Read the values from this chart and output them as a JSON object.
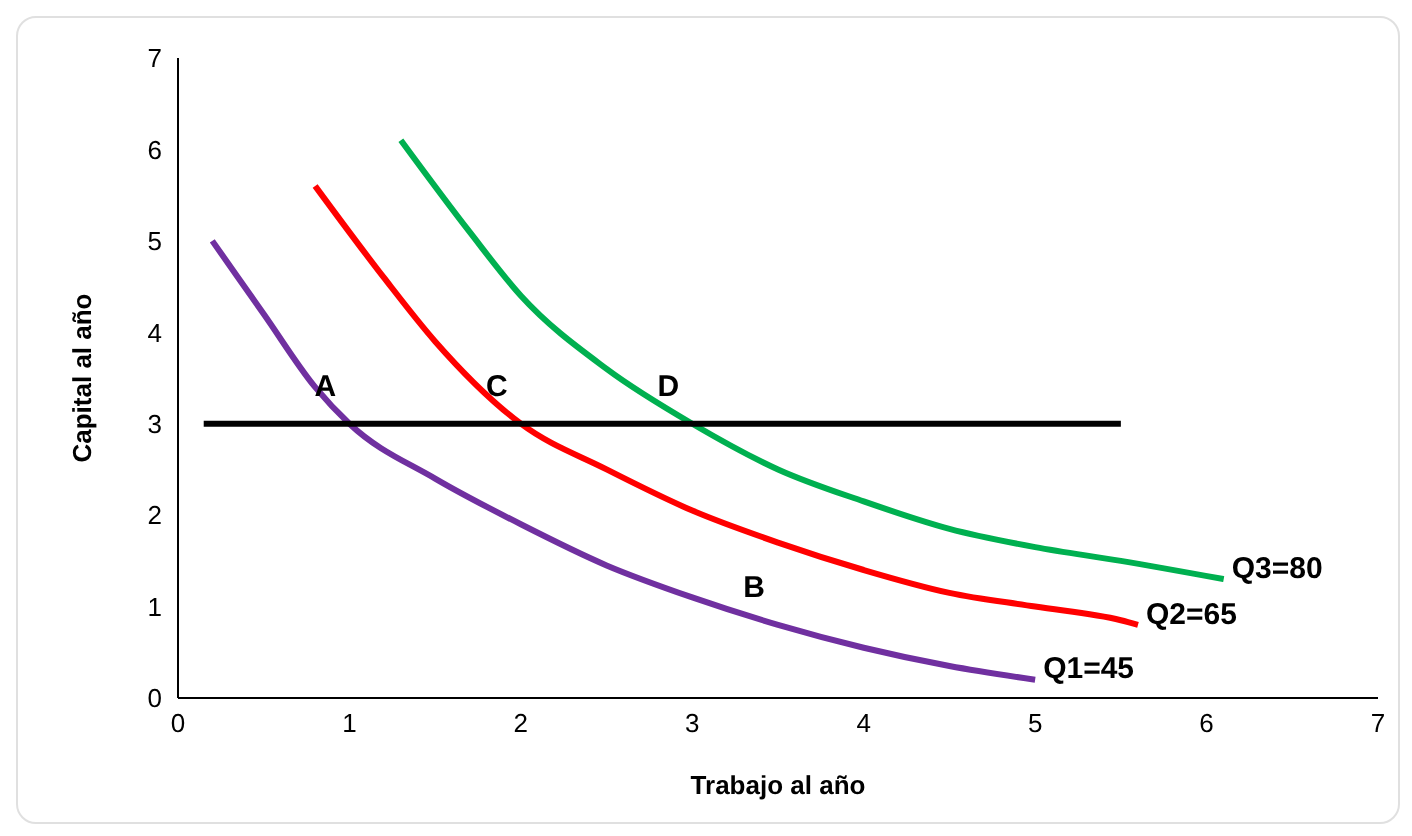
{
  "chart_data": {
    "type": "line",
    "xlabel": "Trabajo al año",
    "ylabel": "Capital al año",
    "xlim": [
      0,
      7
    ],
    "ylim": [
      0,
      7
    ],
    "xticks": [
      0,
      1,
      2,
      3,
      4,
      5,
      6,
      7
    ],
    "yticks": [
      0,
      1,
      2,
      3,
      4,
      5,
      6,
      7
    ],
    "grid": false,
    "legend": false,
    "marker": "none",
    "line_style": "solid",
    "series": [
      {
        "color": "#7030a0",
        "x": [
          0.2,
          0.5,
          0.8,
          1,
          1.5,
          2,
          2.5,
          3,
          3.5,
          4,
          4.5,
          5
        ],
        "values": [
          5,
          4.2,
          3.4,
          3,
          2.4,
          1.9,
          1.45,
          1.1,
          0.8,
          0.55,
          0.35,
          0.2
        ]
      },
      {
        "color": "#ff0000",
        "x": [
          0.8,
          1.2,
          1.5,
          2,
          2.5,
          3,
          3.5,
          4,
          4.5,
          5,
          5.5,
          5.6
        ],
        "values": [
          5.6,
          4.6,
          3.9,
          3,
          2.5,
          2.05,
          1.7,
          1.4,
          1.15,
          1,
          0.85,
          0.8
        ]
      },
      {
        "color": "#00b050",
        "x": [
          1.3,
          1.7,
          2,
          2.5,
          3,
          3.5,
          4,
          4.5,
          5,
          5.5,
          6.1
        ],
        "values": [
          6.1,
          5.1,
          4.4,
          3.6,
          3,
          2.5,
          2.15,
          1.85,
          1.65,
          1.5,
          1.3
        ]
      },
      {
        "color": "#000000",
        "x": [
          0.15,
          5.5
        ],
        "values": [
          3,
          3
        ]
      }
    ],
    "annotations": [
      {
        "text": "A",
        "x": 1,
        "y": 3
      },
      {
        "text": "C",
        "x": 2,
        "y": 3
      },
      {
        "text": "D",
        "x": 3,
        "y": 3
      },
      {
        "text": "B",
        "x": 3.5,
        "y": 0.8
      },
      {
        "text": "Q3=80",
        "x": 6.1,
        "y": 1.3
      },
      {
        "text": "Q2=65",
        "x": 5.6,
        "y": 0.8
      },
      {
        "text": "Q1=45",
        "x": 5,
        "y": 0.2
      }
    ]
  }
}
